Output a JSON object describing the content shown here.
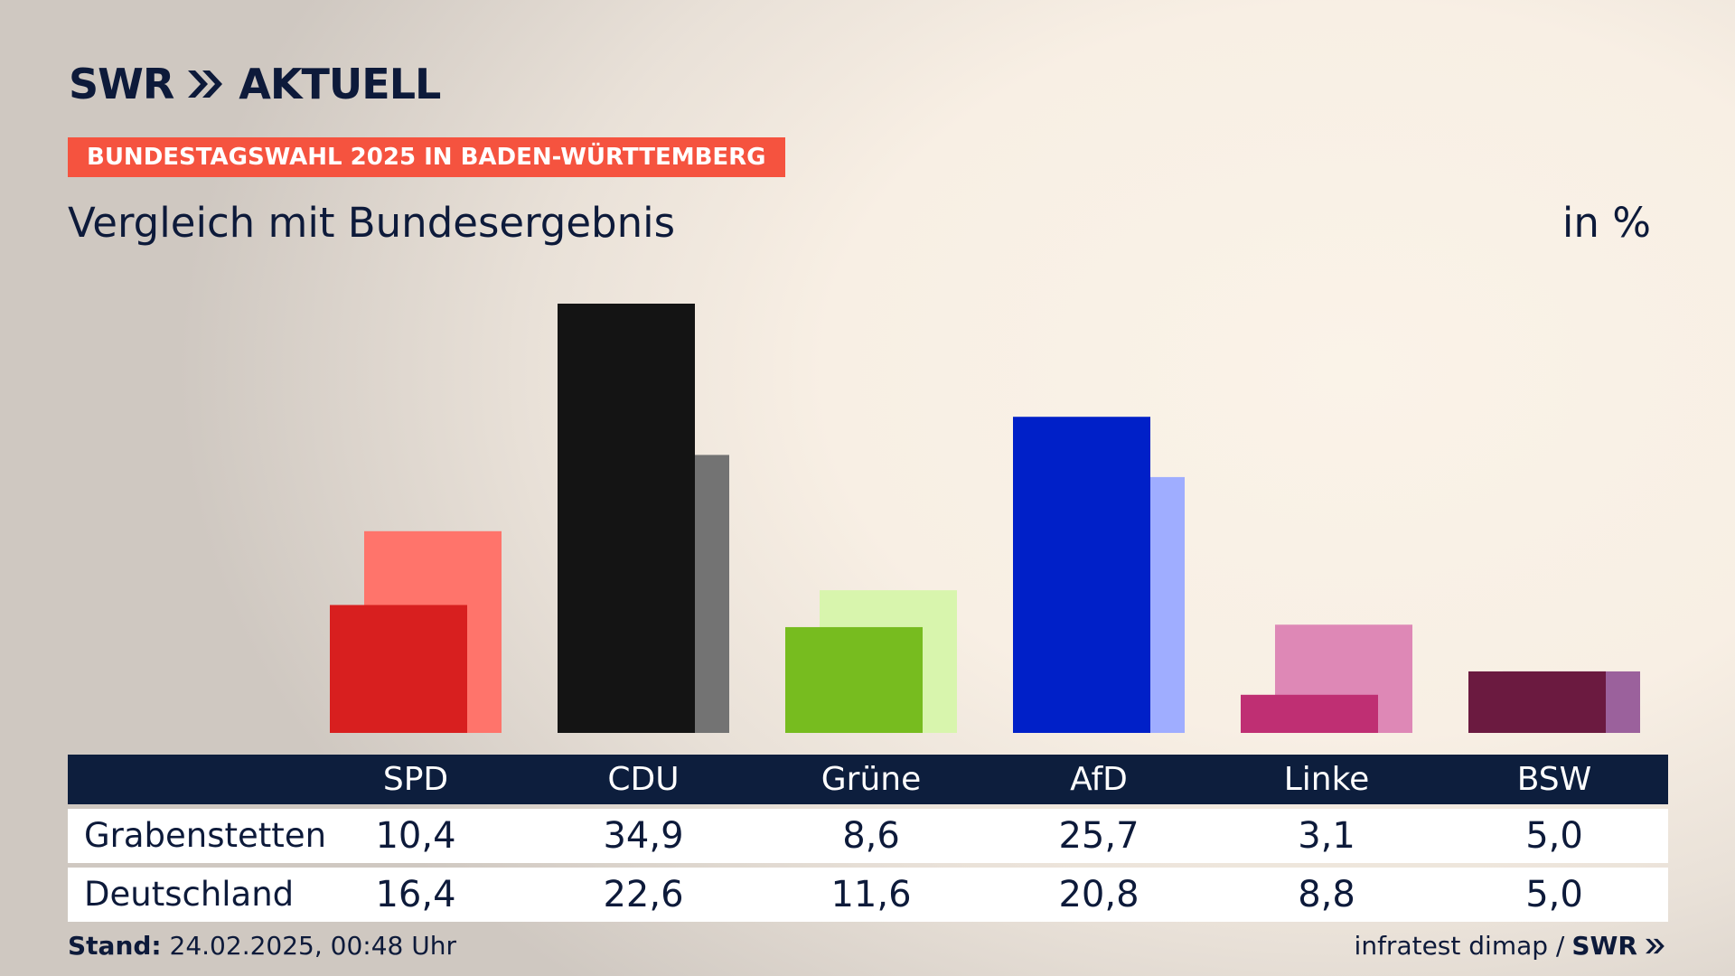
{
  "header": {
    "brand": "SWR",
    "brand_suffix": "AKTUELL",
    "badge": "BUNDESTAGSWAHL 2025 IN BADEN-WÜRTTEMBERG",
    "subtitle": "Vergleich mit Bundesergebnis",
    "unit": "in %"
  },
  "colors": {
    "navy": "#0d1e3d",
    "badge": "#f5533f"
  },
  "chart_data": {
    "type": "bar",
    "title": "Vergleich mit Bundesergebnis",
    "ylabel": "in %",
    "categories": [
      "SPD",
      "CDU",
      "Grüne",
      "AfD",
      "Linke",
      "BSW"
    ],
    "series": [
      {
        "name": "Grabenstetten",
        "values": [
          10.4,
          34.9,
          8.6,
          25.7,
          3.1,
          5.0
        ],
        "colors": [
          "#d81f1f",
          "#141414",
          "#77bc1f",
          "#0020c8",
          "#bf2f73",
          "#6b1a40"
        ]
      },
      {
        "name": "Deutschland",
        "values": [
          16.4,
          22.6,
          11.6,
          20.8,
          8.8,
          5.0
        ],
        "colors": [
          "#ff746b",
          "#737373",
          "#d8f5ad",
          "#9fadff",
          "#de88b6",
          "#9b619c"
        ]
      }
    ],
    "ylim": [
      0,
      35
    ],
    "grid": false,
    "legend": "table below chart"
  },
  "table": {
    "rows": [
      {
        "label": "Grabenstetten",
        "values": [
          "10,4",
          "34,9",
          "8,6",
          "25,7",
          "3,1",
          "5,0"
        ]
      },
      {
        "label": "Deutschland",
        "values": [
          "16,4",
          "22,6",
          "11,6",
          "20,8",
          "8,8",
          "5,0"
        ]
      }
    ]
  },
  "footer": {
    "stand_label": "Stand:",
    "stand_value": "24.02.2025, 00:48 Uhr",
    "source": "infratest dimap /",
    "source_brand": "SWR"
  }
}
